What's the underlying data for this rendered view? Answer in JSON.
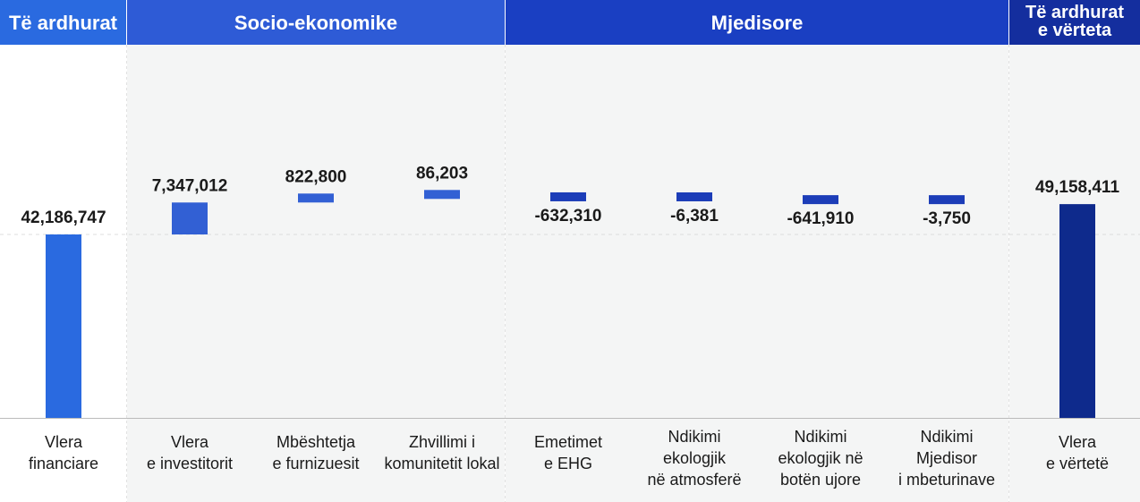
{
  "headers": [
    {
      "label_lines": [
        "Të ardhurat"
      ],
      "color": "#2a6ae0"
    },
    {
      "label_lines": [
        "Socio-ekonomike"
      ],
      "color": "#2e5bd6"
    },
    {
      "label_lines": [
        "Mjedisore"
      ],
      "color": "#1a3fc2"
    },
    {
      "label_lines": [
        "Të ardhurat",
        "e vërteta"
      ],
      "color": "#142e9e"
    }
  ],
  "colors": {
    "financial": "#2a6ae0",
    "socio": "#3260d4",
    "environmental": "#1c3db8",
    "true_value": "#0e2a8c",
    "panel_gray": "#f4f5f5",
    "axis": "#bbbbbb",
    "gridline": "#dddddd"
  },
  "chart_data": {
    "type": "bar",
    "subtype": "waterfall",
    "title": "",
    "xlabel": "",
    "ylabel": "",
    "ylim": [
      0,
      51000000
    ],
    "categories": [
      [
        "Vlera",
        "financiare"
      ],
      [
        "Vlera",
        "e investitorit"
      ],
      [
        "Mbështetja",
        "e furnizuesit"
      ],
      [
        "Zhvillimi i",
        "komunitetit lokal"
      ],
      [
        "Emetimet",
        "e EHG"
      ],
      [
        "Ndikimi",
        "ekologjik",
        "në atmosferë"
      ],
      [
        "Ndikimi",
        "ekologjik në",
        "botën ujore"
      ],
      [
        "Ndikimi",
        "Mjedisor",
        "i mbeturinave"
      ],
      [
        "Vlera",
        "e vërtetë"
      ]
    ],
    "values": [
      42186747,
      7347012,
      822800,
      86203,
      -632310,
      -6381,
      -641910,
      -3750,
      49158411
    ],
    "value_labels": [
      "42,186,747",
      "7,347,012",
      "822,800",
      "86,203",
      "-632,310",
      "-6,381",
      "-641,910",
      "-3,750",
      "49,158,411"
    ],
    "bar_kinds": [
      "total",
      "delta",
      "delta",
      "delta",
      "delta",
      "delta",
      "delta",
      "delta",
      "total"
    ],
    "groups": [
      "financial",
      "socio",
      "socio",
      "socio",
      "environmental",
      "environmental",
      "environmental",
      "environmental",
      "true_value"
    ]
  }
}
